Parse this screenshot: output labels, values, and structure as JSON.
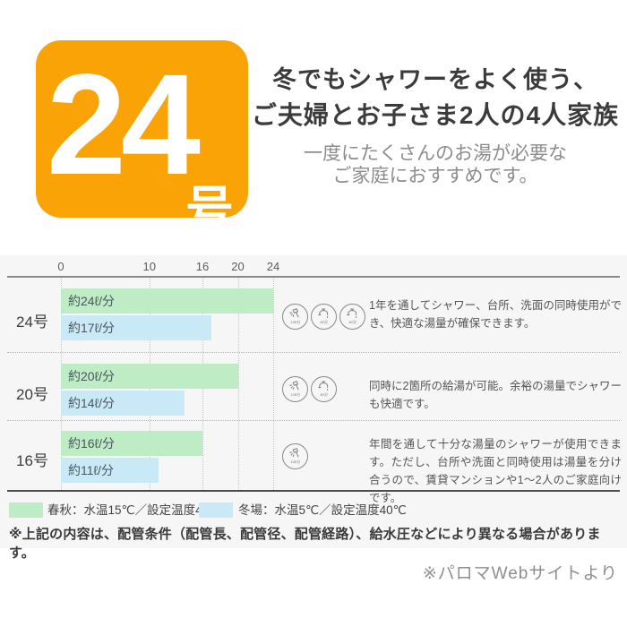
{
  "hero": {
    "badge_number": "24",
    "badge_suffix": "号",
    "badge_color": "#f9a306",
    "title_line1": "冬でもシャワーをよく使う、",
    "title_line2": "ご夫婦とお子さま2人の4人家族",
    "subtitle_line1": "一度にたくさんのお湯が必要な",
    "subtitle_line2": "ご家庭におすすめです。"
  },
  "chart_data": {
    "type": "bar",
    "orientation": "horizontal",
    "categories": [
      "24号",
      "20号",
      "16号"
    ],
    "axis_ticks": [
      0,
      10,
      16,
      20,
      24
    ],
    "xlim": [
      0,
      24
    ],
    "grid": "dotted-vertical",
    "legend_position": "bottom",
    "series": [
      {
        "name": "春秋：水温15℃／設定温度40℃",
        "color": "#bdecc5",
        "values": [
          24,
          20,
          16
        ],
        "bar_labels": [
          "約24ℓ/分",
          "約20ℓ/分",
          "約16ℓ/分"
        ]
      },
      {
        "name": "冬場：水温5℃／設定温度40℃",
        "color": "#c9e9f7",
        "values": [
          17,
          14,
          11
        ],
        "bar_labels": [
          "約17ℓ/分",
          "約14ℓ/分",
          "約11ℓ/分"
        ]
      }
    ]
  },
  "rows": [
    {
      "label": "24号",
      "spring_label": "約24ℓ/分",
      "spring_value": 24,
      "winter_label": "約17ℓ/分",
      "winter_value": 17,
      "description": "1年を通してシャワー、台所、洗面の同時使用ができ、快適な湯量が確保できます。"
    },
    {
      "label": "20号",
      "spring_label": "約20ℓ/分",
      "spring_value": 20,
      "winter_label": "約14ℓ/分",
      "winter_value": 14,
      "description": "同時に2箇所の給湯が可能。余裕の湯量でシャワーも快適です。"
    },
    {
      "label": "16号",
      "spring_label": "約16ℓ/分",
      "spring_value": 16,
      "winter_label": "約11ℓ/分",
      "winter_value": 11,
      "description": "年間を通して十分な湯量のシャワーが使用できます。ただし、台所や洗面と同時使用は湯量を分け合うので、賃貸マンションや1〜2人のご家庭向けです。"
    }
  ],
  "icon_captions": {
    "shower": "10ℓ/分",
    "faucet": "4ℓ/分"
  },
  "legend": {
    "spring": {
      "label": "春秋：水温15℃／設定温度40℃",
      "color": "#bdecc5"
    },
    "winter": {
      "label": "冬場：水温5℃／設定温度40℃",
      "color": "#c9e9f7"
    }
  },
  "footnote": "※上記の内容は、配管条件（配管長、配管径、配管経路）、給水圧などにより異なる場合があります。",
  "credit": "※パロマWebサイトより"
}
